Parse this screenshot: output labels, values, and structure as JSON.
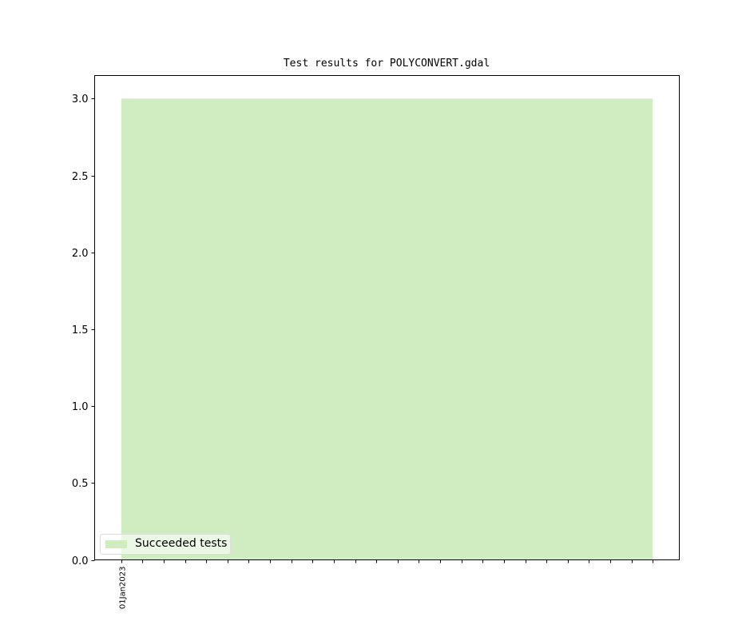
{
  "chart_data": {
    "type": "area",
    "title": "Test results for POLYCONVERT.gdal",
    "xlabel": "",
    "ylabel": "",
    "x": [
      0,
      1,
      2,
      3,
      4,
      5,
      6,
      7,
      8,
      9,
      10,
      11,
      12,
      13,
      14,
      15,
      16,
      17,
      18,
      19,
      20,
      21,
      22,
      23,
      24,
      25
    ],
    "x_tick_labels": [
      "01Jan2023",
      "",
      "",
      "",
      "",
      "",
      "",
      "",
      "",
      "",
      "",
      "",
      "",
      "",
      "",
      "",
      "",
      "",
      "",
      "",
      "",
      "",
      "",
      "",
      "",
      ""
    ],
    "xlim": [
      -1.25,
      26.25
    ],
    "ylim": [
      0,
      3.15
    ],
    "y_ticks": [
      0.0,
      0.5,
      1.0,
      1.5,
      2.0,
      2.5,
      3.0
    ],
    "y_tick_labels": [
      "0.0",
      "0.5",
      "1.0",
      "1.5",
      "2.0",
      "2.5",
      "3.0"
    ],
    "grid": false,
    "legend_position": "lower-left",
    "series": [
      {
        "name": "Succeeded tests",
        "color": "#cfedc0",
        "values": [
          3,
          3,
          3,
          3,
          3,
          3,
          3,
          3,
          3,
          3,
          3,
          3,
          3,
          3,
          3,
          3,
          3,
          3,
          3,
          3,
          3,
          3,
          3,
          3,
          3,
          3
        ]
      }
    ]
  }
}
